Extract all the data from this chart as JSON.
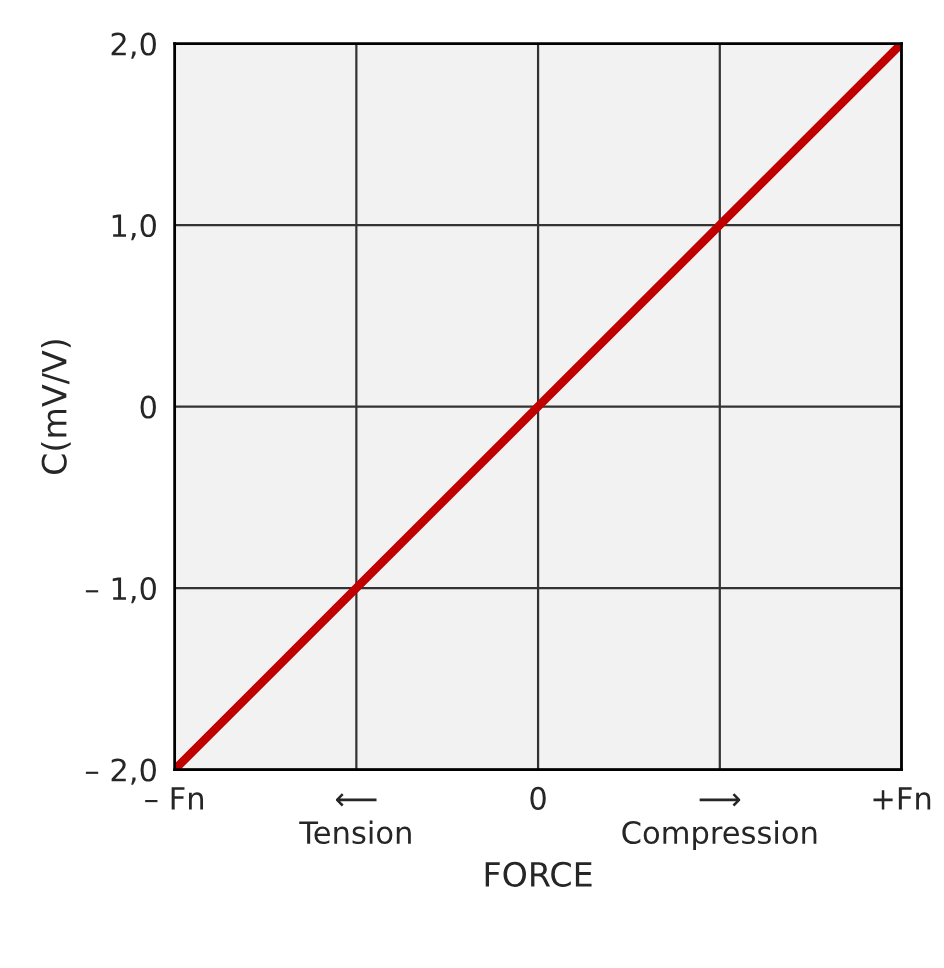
{
  "chart_data": {
    "type": "line",
    "xlabel": "FORCE",
    "ylabel": "C(mV/V)",
    "categories": [
      "– Fn",
      "⟵\nTension",
      "0",
      "⟶\nCompression",
      "+Fn"
    ],
    "series": [
      {
        "values": [
          -2,
          -1,
          0,
          1,
          2
        ],
        "color": "#c00000"
      }
    ],
    "ylim": [
      -2,
      2
    ],
    "yticks": [
      {
        "value": -2,
        "label": "– 2,0"
      },
      {
        "value": -1,
        "label": "– 1,0"
      },
      0,
      {
        "value": 1,
        "label": "1,0"
      },
      {
        "value": 2,
        "label": "2,0"
      }
    ],
    "grid": true,
    "marker": "none",
    "line_style": "solid"
  }
}
